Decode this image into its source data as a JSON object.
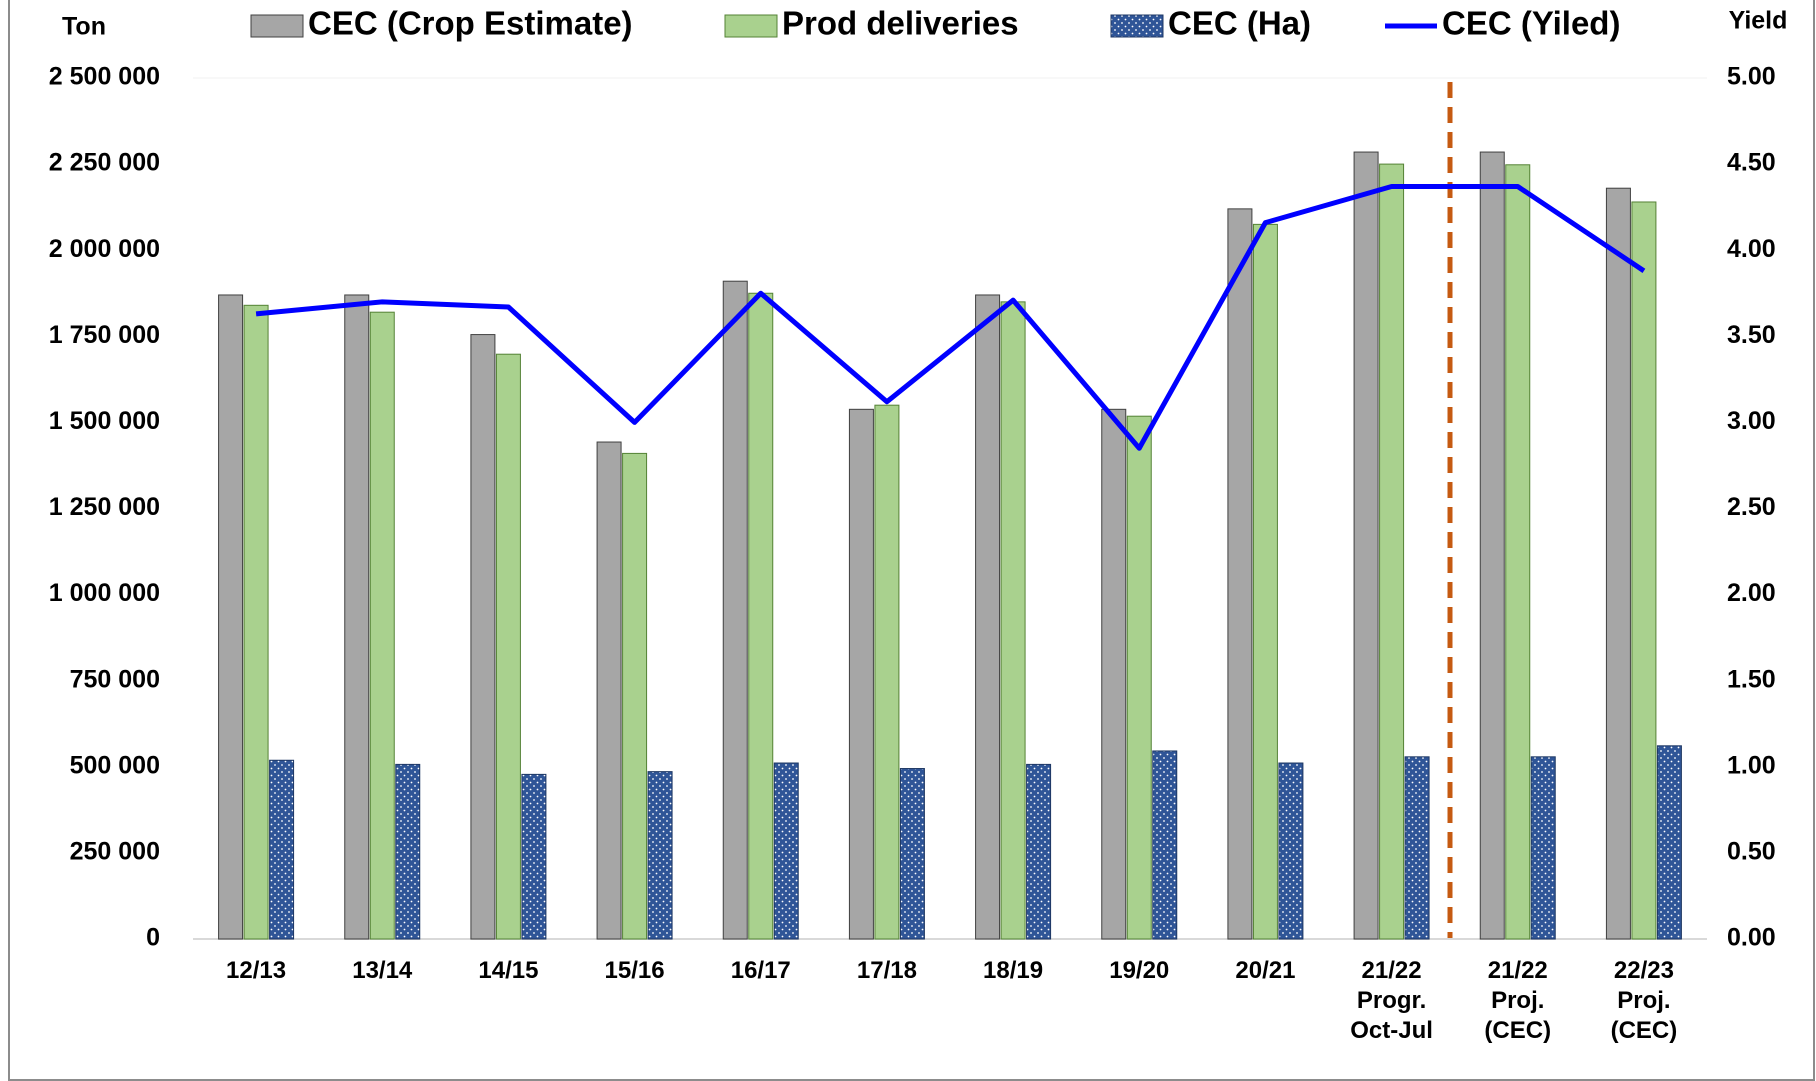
{
  "chart_data": {
    "type": "bar",
    "y_axis_label": "Ton",
    "y2_axis_label": "Yield",
    "categories": [
      "12/13",
      "13/14",
      "14/15",
      "15/16",
      "16/17",
      "17/18",
      "18/19",
      "19/20",
      "20/21",
      "21/22\nProgr.\nOct-Jul",
      "21/22\nProj.\n(CEC)",
      "22/23\nProj.\n(CEC)"
    ],
    "series": [
      {
        "name": "CEC (Crop Estimate)",
        "color": "#a6a6a6",
        "values": [
          1870000,
          1870000,
          1755000,
          1443000,
          1910000,
          1538000,
          1870000,
          1538000,
          2120000,
          2285000,
          2285000,
          2180000
        ]
      },
      {
        "name": "Prod deliveries",
        "color": "#a9d18e",
        "values": [
          1840000,
          1820000,
          1698000,
          1410000,
          1875000,
          1550000,
          1850000,
          1518000,
          2075000,
          2250000,
          2248000,
          2140000
        ]
      },
      {
        "name": "CEC (Ha)",
        "color": "#2f5597",
        "pattern": "dotted",
        "values": [
          519000,
          507000,
          478000,
          486000,
          511000,
          495000,
          507000,
          546000,
          511000,
          529000,
          529000,
          561000
        ]
      },
      {
        "name": "CEC (Yiled)",
        "color": "#0000ff",
        "type": "line",
        "axis": "y2",
        "values": [
          3.63,
          3.7,
          3.67,
          3.0,
          3.75,
          3.12,
          3.71,
          2.85,
          4.16,
          4.37,
          4.37,
          3.88
        ]
      }
    ],
    "ylim": [
      0,
      2500000
    ],
    "yticks": [
      0,
      {
        "value": 250000,
        "label": "250 000"
      },
      {
        "value": 500000,
        "label": "500 000"
      },
      {
        "value": 750000,
        "label": "750 000"
      },
      {
        "value": 1000000,
        "label": "1 000 000"
      },
      {
        "value": 1250000,
        "label": "1 250 000"
      },
      {
        "value": 1500000,
        "label": "1 500 000"
      },
      {
        "value": 1750000,
        "label": "1 750 000"
      },
      {
        "value": 2000000,
        "label": "2 000 000"
      },
      {
        "value": 2250000,
        "label": "2 250 000"
      },
      {
        "value": 2500000,
        "label": "2 500 000"
      }
    ],
    "y2lim": [
      0,
      5
    ],
    "y2ticks": [
      {
        "value": 0,
        "label": "0.00"
      },
      {
        "value": 0.5,
        "label": "0.50"
      },
      {
        "value": 1,
        "label": "1.00"
      },
      {
        "value": 1.5,
        "label": "1.50"
      },
      {
        "value": 2,
        "label": "2.00"
      },
      {
        "value": 2.5,
        "label": "2.50"
      },
      {
        "value": 3,
        "label": "3.00"
      },
      {
        "value": 3.5,
        "label": "3.50"
      },
      {
        "value": 4,
        "label": "4.00"
      },
      {
        "value": 4.5,
        "label": "4.50"
      },
      {
        "value": 5,
        "label": "5.00"
      }
    ],
    "grid": false,
    "legend": "top"
  }
}
